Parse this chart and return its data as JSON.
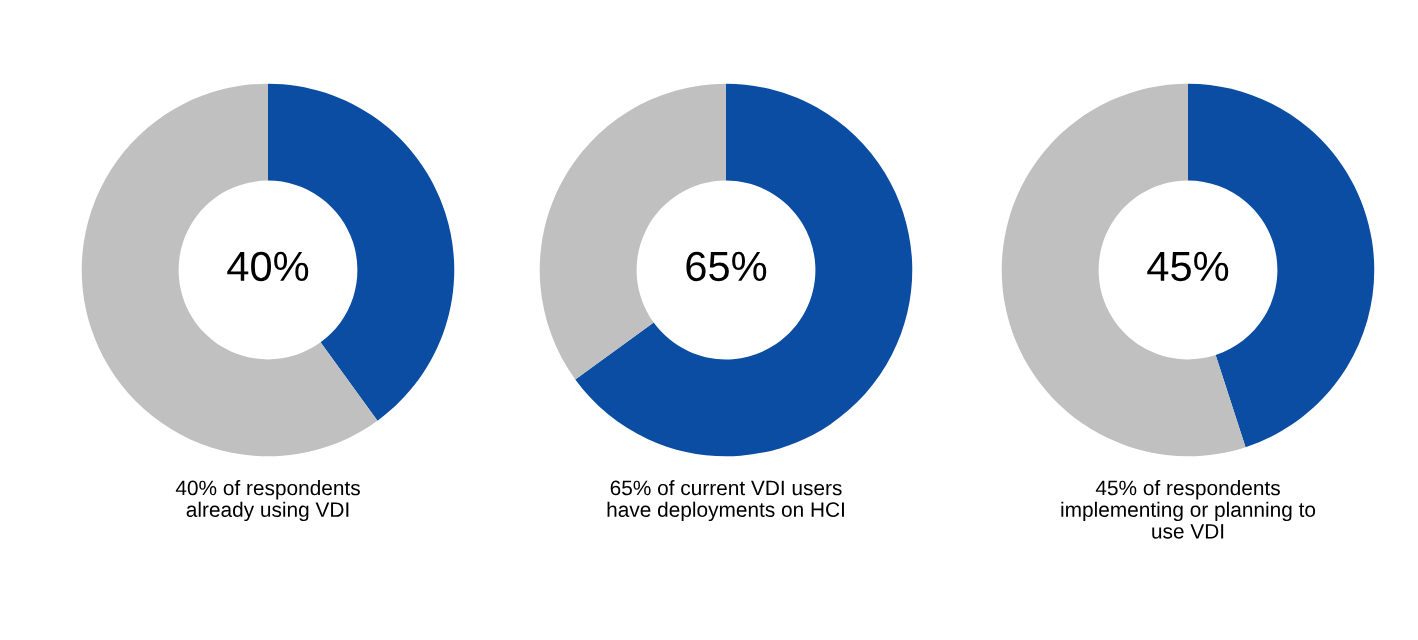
{
  "chart_data": [
    {
      "type": "donut",
      "categories": [
        null,
        null
      ],
      "values": [
        40,
        60
      ],
      "colors": [
        "#0a4da2",
        "#c0c0c0"
      ],
      "annotations": [
        "40%",
        "40% of respondents\nalready using VDI"
      ]
    },
    {
      "type": "donut",
      "categories": [
        null,
        null
      ],
      "values": [
        65,
        35
      ],
      "colors": [
        "#0a4da2",
        "#c0c0c0"
      ],
      "annotations": [
        "65%",
        "65% of current VDI users\nhave deployments on HCI"
      ]
    },
    {
      "type": "donut",
      "categories": [
        null,
        null
      ],
      "values": [
        45,
        55
      ],
      "colors": [
        "#0a4da2",
        "#c0c0c0"
      ],
      "annotations": [
        "45%",
        "45% of respondents\nimplementing or planning to\nuse VDI"
      ]
    }
  ]
}
